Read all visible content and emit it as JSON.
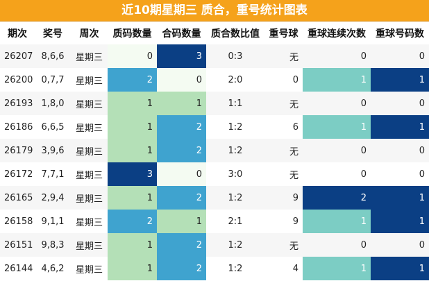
{
  "title": "近10期星期三 质合，重号统计图表",
  "columns": [
    "期次",
    "奖号",
    "周次",
    "质码数量",
    "合码数量",
    "质合数比值",
    "重号球",
    "重球连续次数",
    "重球号码数"
  ],
  "rows": [
    {
      "issue": "26207",
      "number": "8,6,6",
      "weekday": "星期三",
      "prime": "0",
      "composite": "3",
      "ratio": "0:3",
      "repeat": "无",
      "streak": "0",
      "repeat_count": "0"
    },
    {
      "issue": "26200",
      "number": "0,7,7",
      "weekday": "星期三",
      "prime": "2",
      "composite": "0",
      "ratio": "2:0",
      "repeat": "0",
      "streak": "1",
      "repeat_count": "1"
    },
    {
      "issue": "26193",
      "number": "1,8,0",
      "weekday": "星期三",
      "prime": "1",
      "composite": "1",
      "ratio": "1:1",
      "repeat": "无",
      "streak": "0",
      "repeat_count": "0"
    },
    {
      "issue": "26186",
      "number": "6,6,5",
      "weekday": "星期三",
      "prime": "1",
      "composite": "2",
      "ratio": "1:2",
      "repeat": "6",
      "streak": "1",
      "repeat_count": "1"
    },
    {
      "issue": "26179",
      "number": "3,9,6",
      "weekday": "星期三",
      "prime": "1",
      "composite": "2",
      "ratio": "1:2",
      "repeat": "无",
      "streak": "0",
      "repeat_count": "0"
    },
    {
      "issue": "26172",
      "number": "7,7,1",
      "weekday": "星期三",
      "prime": "3",
      "composite": "0",
      "ratio": "3:0",
      "repeat": "无",
      "streak": "0",
      "repeat_count": "0"
    },
    {
      "issue": "26165",
      "number": "2,9,4",
      "weekday": "星期三",
      "prime": "1",
      "composite": "2",
      "ratio": "1:2",
      "repeat": "9",
      "streak": "2",
      "repeat_count": "1"
    },
    {
      "issue": "26158",
      "number": "9,1,1",
      "weekday": "星期三",
      "prime": "2",
      "composite": "1",
      "ratio": "2:1",
      "repeat": "9",
      "streak": "1",
      "repeat_count": "1"
    },
    {
      "issue": "26151",
      "number": "9,8,3",
      "weekday": "星期三",
      "prime": "1",
      "composite": "2",
      "ratio": "1:2",
      "repeat": "无",
      "streak": "0",
      "repeat_count": "0"
    },
    {
      "issue": "26144",
      "number": "4,6,2",
      "weekday": "星期三",
      "prime": "1",
      "composite": "2",
      "ratio": "1:2",
      "repeat": "4",
      "streak": "1",
      "repeat_count": "1"
    }
  ],
  "colors": {
    "title_bg": "#f5a21b",
    "dark_blue": "#0b3f84",
    "mid_blue": "#3fa3cf",
    "light_green": "#b4e0b7",
    "very_light_green": "#f4fbf2",
    "teal": "#7ccdc4"
  }
}
